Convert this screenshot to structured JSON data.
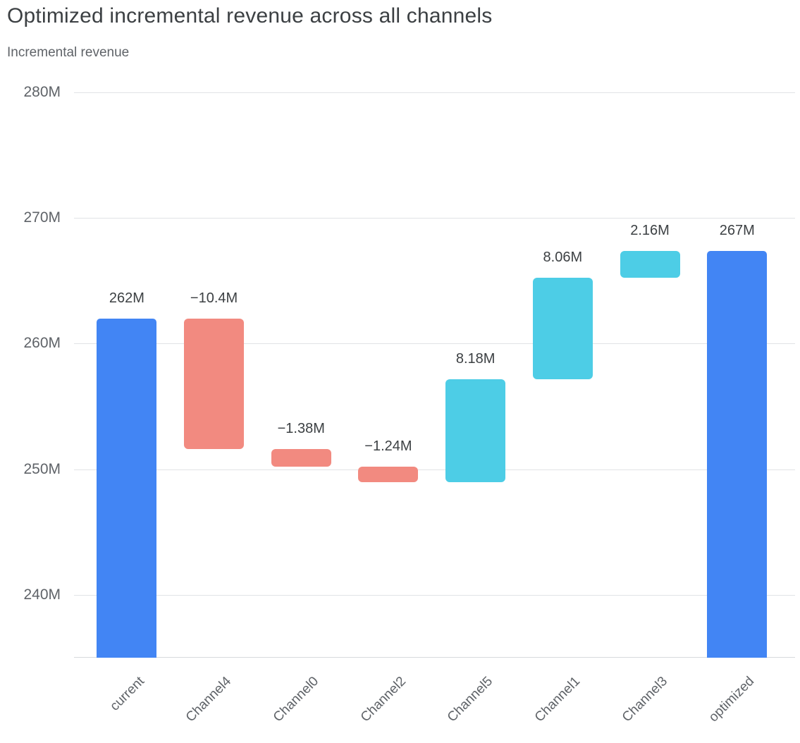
{
  "header": {
    "title": "Optimized incremental revenue across all channels",
    "subtitle": "Incremental revenue"
  },
  "chart_data": {
    "type": "bar",
    "variant": "waterfall",
    "title": "Optimized incremental revenue across all channels",
    "subtitle": "Incremental revenue",
    "xlabel": "",
    "ylabel": "Incremental revenue",
    "unit": "M",
    "ylim": [
      235,
      281.5
    ],
    "yticks": [
      240,
      250,
      260,
      270,
      280
    ],
    "ytick_labels": [
      "240M",
      "250M",
      "260M",
      "270M",
      "280M"
    ],
    "grid": "horizontal",
    "legend": "none",
    "categories": [
      "current",
      "Channel4",
      "Channel0",
      "Channel2",
      "Channel5",
      "Channel1",
      "Channel3",
      "optimized"
    ],
    "bars": [
      {
        "category": "current",
        "role": "total",
        "start": 235,
        "end": 262,
        "delta": 262,
        "value_label": "262M"
      },
      {
        "category": "Channel4",
        "role": "decrease",
        "start": 262,
        "end": 251.6,
        "delta": -10.4,
        "value_label": "−10.4M"
      },
      {
        "category": "Channel0",
        "role": "decrease",
        "start": 251.6,
        "end": 250.22,
        "delta": -1.38,
        "value_label": "−1.38M"
      },
      {
        "category": "Channel2",
        "role": "decrease",
        "start": 250.22,
        "end": 248.98,
        "delta": -1.24,
        "value_label": "−1.24M"
      },
      {
        "category": "Channel5",
        "role": "increase",
        "start": 248.98,
        "end": 257.16,
        "delta": 8.18,
        "value_label": "8.18M"
      },
      {
        "category": "Channel1",
        "role": "increase",
        "start": 257.16,
        "end": 265.22,
        "delta": 8.06,
        "value_label": "8.06M"
      },
      {
        "category": "Channel3",
        "role": "increase",
        "start": 265.22,
        "end": 267.38,
        "delta": 2.16,
        "value_label": "2.16M"
      },
      {
        "category": "optimized",
        "role": "total",
        "start": 235,
        "end": 267.38,
        "delta": 267,
        "value_label": "267M"
      }
    ],
    "colors": {
      "total": "#4285f4",
      "decrease": "#f28a80",
      "increase": "#4dcde6",
      "gridline": "#e1e3e6",
      "axis_text": "#5f6368",
      "value_text": "#3c4043",
      "title_text": "#3c4043"
    }
  }
}
